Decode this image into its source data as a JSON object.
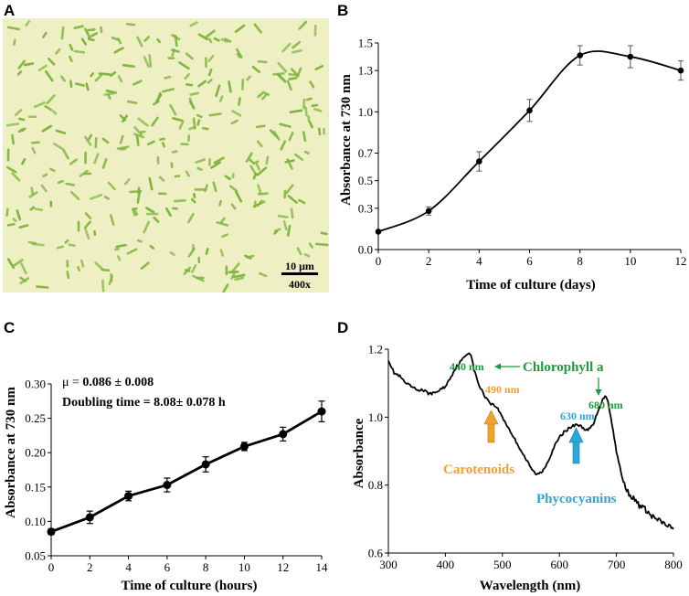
{
  "colors": {
    "micrograph_bg": "#eef0c4",
    "cell": "#7db33c",
    "chlorophyll": "#1f9a3a",
    "carotenoid": "#f0a22a",
    "phycocyanin": "#2aa8d8"
  },
  "panels": {
    "A": {
      "letter": "A"
    },
    "B": {
      "letter": "B"
    },
    "C": {
      "letter": "C"
    },
    "D": {
      "letter": "D"
    }
  },
  "micrograph": {
    "scale_label": "10 μm",
    "magnification": "400x"
  },
  "chart_data": [
    {
      "id": "B",
      "type": "line",
      "title": "",
      "xlabel": "Time of culture (days)",
      "ylabel": "Absorbance at 730 nm",
      "xlim": [
        0,
        12
      ],
      "ylim": [
        0,
        1.5
      ],
      "xticks": [
        0,
        2,
        4,
        6,
        8,
        10,
        12
      ],
      "yticks": [
        0,
        0.3,
        0.5,
        0.7,
        1.0,
        1.3,
        1.5
      ],
      "ytick_labels": [
        "0.0",
        "0.3",
        "0.5",
        "0.7",
        "1.0",
        "1.3",
        "1.5"
      ],
      "x": [
        0,
        2,
        4,
        6,
        8,
        10,
        12
      ],
      "y": [
        0.13,
        0.28,
        0.64,
        1.01,
        1.41,
        1.4,
        1.3
      ],
      "error": [
        0.0,
        0.03,
        0.07,
        0.08,
        0.07,
        0.08,
        0.07
      ],
      "smooth_curve": true
    },
    {
      "id": "C",
      "type": "line",
      "title": "",
      "xlabel": "Time of culture (hours)",
      "ylabel": "Absorbance at 730 nm",
      "xlim": [
        0,
        14
      ],
      "ylim": [
        0.05,
        0.3
      ],
      "xticks": [
        0,
        2,
        4,
        6,
        8,
        10,
        12,
        14
      ],
      "yticks": [
        0.05,
        0.1,
        0.15,
        0.2,
        0.25,
        0.3
      ],
      "ytick_labels": [
        "0.05",
        "0.10",
        "0.15",
        "0.20",
        "0.25",
        "0.30"
      ],
      "x": [
        0,
        2,
        4,
        6,
        8,
        10,
        12,
        14
      ],
      "y": [
        0.085,
        0.106,
        0.137,
        0.153,
        0.183,
        0.209,
        0.227,
        0.26
      ],
      "error": [
        0.004,
        0.009,
        0.007,
        0.01,
        0.011,
        0.006,
        0.01,
        0.015
      ],
      "annotations": {
        "mu_prefix": "μ = ",
        "mu_value": "0.086 ± 0.008",
        "doubling": "Doubling time = 8.08± 0.078 h"
      }
    },
    {
      "id": "D",
      "type": "line",
      "title": "",
      "xlabel": "Wavelength (nm)",
      "ylabel": "Absorbance",
      "xlim": [
        300,
        800
      ],
      "ylim": [
        0.6,
        1.2
      ],
      "xticks": [
        300,
        400,
        500,
        600,
        700,
        800
      ],
      "yticks": [
        0.6,
        0.8,
        1.0,
        1.2
      ],
      "ytick_labels": [
        "0.6",
        "0.8",
        "1.0",
        "1.2"
      ],
      "x": [
        300,
        310,
        320,
        330,
        340,
        350,
        360,
        370,
        380,
        390,
        400,
        410,
        420,
        430,
        440,
        445,
        450,
        460,
        470,
        480,
        490,
        500,
        510,
        520,
        530,
        540,
        550,
        560,
        570,
        580,
        590,
        600,
        610,
        620,
        630,
        640,
        650,
        660,
        670,
        680,
        685,
        690,
        700,
        710,
        720,
        730,
        740,
        750,
        760,
        770,
        780,
        790,
        800
      ],
      "y": [
        1.17,
        1.13,
        1.12,
        1.1,
        1.09,
        1.08,
        1.08,
        1.07,
        1.07,
        1.08,
        1.09,
        1.12,
        1.15,
        1.17,
        1.19,
        1.185,
        1.14,
        1.09,
        1.06,
        1.04,
        1.03,
        1.0,
        0.97,
        0.94,
        0.91,
        0.88,
        0.85,
        0.83,
        0.84,
        0.87,
        0.91,
        0.94,
        0.96,
        0.97,
        0.98,
        0.97,
        0.96,
        0.98,
        1.03,
        1.065,
        1.05,
        1.0,
        0.9,
        0.82,
        0.78,
        0.76,
        0.74,
        0.73,
        0.71,
        0.7,
        0.69,
        0.68,
        0.67
      ],
      "annotations": {
        "peak440": "440 nm",
        "chlorophyll": "Chlorophyll a",
        "peak680": "680 nm",
        "peak490": "490 nm",
        "carotenoids": "Carotenoids",
        "peak630": "630 nm",
        "phycocyanins": "Phycocyanins"
      }
    }
  ]
}
